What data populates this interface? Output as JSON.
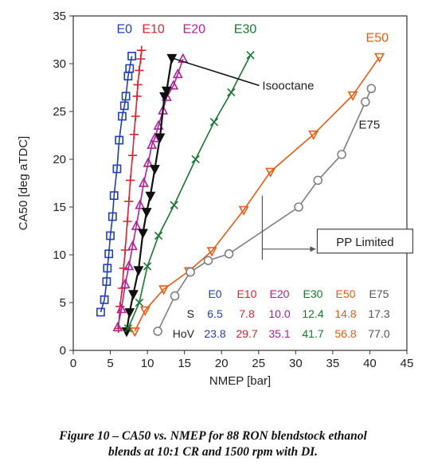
{
  "chart_data": {
    "type": "line",
    "xlabel": "NMEP [bar]",
    "ylabel": "CA50 [deg aTDC]",
    "xlim": [
      0,
      45
    ],
    "ylim": [
      0,
      35
    ],
    "xticks": [
      0,
      5,
      10,
      15,
      20,
      25,
      30,
      35,
      40,
      45
    ],
    "yticks": [
      0,
      5,
      10,
      15,
      20,
      25,
      30,
      35
    ],
    "grid": false,
    "series": [
      {
        "name": "E0",
        "color": "#1f3fb8",
        "marker": "square",
        "x": [
          3.7,
          4.2,
          4.5,
          4.6,
          4.8,
          5.0,
          5.3,
          5.5,
          5.9,
          6.2,
          6.6,
          6.9,
          7.1,
          7.4,
          7.6,
          7.9
        ],
        "y": [
          4.0,
          5.3,
          7.2,
          8.6,
          10.1,
          12.0,
          14.0,
          16.2,
          19.0,
          22.0,
          24.5,
          25.6,
          26.6,
          28.7,
          29.5,
          30.8
        ]
      },
      {
        "name": "E10",
        "color": "#e0202e",
        "marker": "plus",
        "x": [
          6.1,
          6.3,
          6.6,
          6.8,
          7.0,
          7.3,
          7.5,
          7.7,
          8.0,
          8.2,
          8.4,
          8.6,
          8.7,
          8.9,
          9.1,
          9.2
        ],
        "y": [
          2.3,
          4.6,
          6.5,
          8.6,
          10.5,
          13.5,
          15.6,
          17.8,
          20.4,
          22.6,
          24.5,
          26.6,
          27.8,
          29.3,
          30.5,
          31.4
        ]
      },
      {
        "name": "E20",
        "color": "#b0209a",
        "marker": "triangle-up",
        "x": [
          6.0,
          6.5,
          7.0,
          7.5,
          8.0,
          8.5,
          9.0,
          9.5,
          10.1,
          10.6,
          11.0,
          11.5,
          12.1,
          12.6,
          13.5,
          14.1,
          14.8
        ],
        "y": [
          2.4,
          4.3,
          6.9,
          8.8,
          10.9,
          13.0,
          15.2,
          17.5,
          19.6,
          21.5,
          22.2,
          23.5,
          25.1,
          26.5,
          27.7,
          28.9,
          30.5
        ]
      },
      {
        "name": "Isooctane",
        "color": "#111111",
        "marker": "triangle-down",
        "x": [
          7.2,
          7.6,
          8.1,
          8.8,
          9.4,
          9.9,
          10.4,
          11.0,
          11.7,
          12.3,
          12.6,
          13.3
        ],
        "y": [
          2.0,
          4.0,
          5.9,
          8.4,
          12.3,
          14.5,
          16.2,
          19.0,
          22.3,
          26.6,
          27.2,
          30.6
        ]
      },
      {
        "name": "E30",
        "color": "#157a2e",
        "marker": "x",
        "x": [
          7.4,
          8.9,
          10.0,
          11.5,
          13.6,
          16.5,
          19.0,
          21.3,
          23.9
        ],
        "y": [
          2.3,
          5.0,
          8.8,
          12.0,
          15.2,
          20.0,
          23.9,
          27.0,
          30.9
        ]
      },
      {
        "name": "E50",
        "color": "#ee5a10",
        "marker": "triangle-down",
        "x": [
          8.3,
          9.7,
          12.2,
          15.6,
          18.7,
          23.0,
          26.6,
          32.4,
          37.7,
          41.3
        ],
        "y": [
          2.0,
          4.2,
          6.4,
          8.3,
          10.4,
          14.7,
          18.7,
          22.6,
          26.7,
          30.7
        ]
      },
      {
        "name": "E75",
        "color": "#808080",
        "marker": "circle",
        "x": [
          11.4,
          13.7,
          15.8,
          18.2,
          21.0,
          30.4,
          33.0,
          36.2,
          39.4,
          40.2
        ],
        "y": [
          2.0,
          5.7,
          8.2,
          9.4,
          10.1,
          15.0,
          17.8,
          20.5,
          26.0,
          27.4
        ]
      }
    ],
    "annotations": [
      {
        "text": "Isooctane",
        "points_to": {
          "x": 13.3,
          "y": 30.6
        },
        "label_at": {
          "x": 25.5,
          "y": 27.3
        }
      },
      {
        "text": "PP Limited",
        "points_to": {
          "x": 25.5,
          "y": 10.6
        },
        "label_at": {
          "x": 34.2,
          "y": 11.1
        }
      },
      {
        "text": "E75",
        "anchor": {
          "x": 38.5,
          "y": 23.2
        }
      }
    ],
    "table": {
      "header": [
        "",
        "E0",
        "E10",
        "E20",
        "E30",
        "E50",
        "E75"
      ],
      "header_colors": [
        "",
        "#1f3fb8",
        "#e0202e",
        "#b0209a",
        "#157a2e",
        "#ee5a10",
        "#555555"
      ],
      "rows": [
        {
          "label": "S",
          "values": [
            "6.5",
            "7.8",
            "10.0",
            "12.4",
            "14.8",
            "17.3"
          ]
        },
        {
          "label": "HoV",
          "values": [
            "23.8",
            "29.7",
            "35.1",
            "41.7",
            "56.8",
            "77.0"
          ]
        }
      ]
    }
  },
  "caption": {
    "line1": "Figure 10 – CA50 vs. NMEP for 88 RON blendstock ethanol",
    "line2": "blends at 10:1 CR and 1500 rpm with DI."
  }
}
